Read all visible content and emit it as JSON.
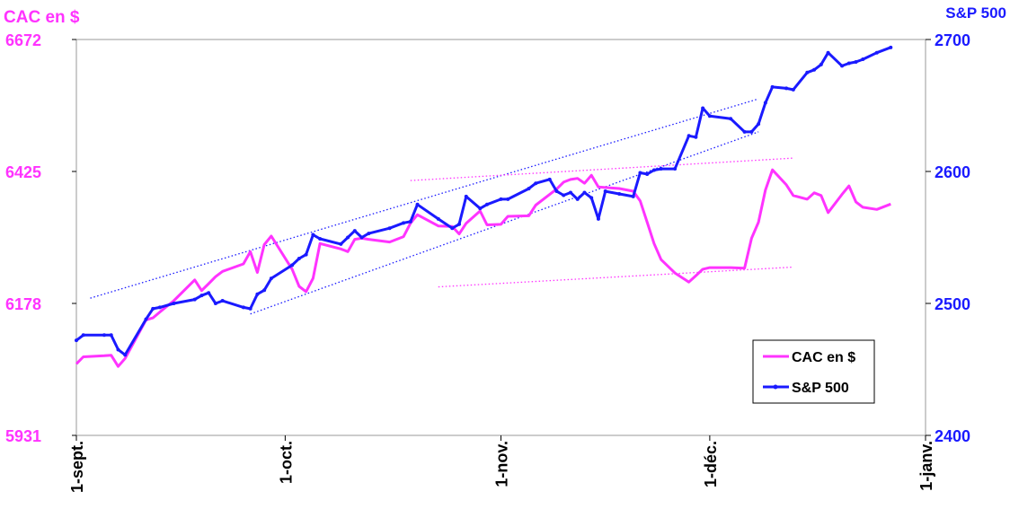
{
  "chart_data": {
    "type": "line",
    "left_axis": {
      "title": "CAC en $",
      "ticks": [
        6672,
        6425,
        6178,
        5931
      ],
      "ylim": [
        5931,
        6672
      ],
      "color": "#ff33ff"
    },
    "right_axis": {
      "title": "S&P 500",
      "ticks": [
        2700,
        2600,
        2500,
        2400
      ],
      "ylim": [
        2400,
        2700
      ],
      "color": "#1a1aff"
    },
    "x_axis": {
      "tick_labels": [
        "1-sept.",
        "1-oct.",
        "1-nov.",
        "1-déc.",
        "1-janv."
      ],
      "ticks": [
        "2017-09-01",
        "2017-10-01",
        "2017-11-01",
        "2017-12-01",
        "2018-01-01"
      ],
      "xlim": [
        "2017-09-01",
        "2018-01-01"
      ]
    },
    "legend": {
      "position": "bottom-right",
      "entries": [
        "CAC en $",
        "S&P 500"
      ]
    },
    "series": [
      {
        "name": "CAC en $",
        "axis": "left",
        "color": "#ff33ff",
        "marker": "none",
        "points": [
          [
            "2017-09-01",
            6065
          ],
          [
            "2017-09-02",
            6078
          ],
          [
            "2017-09-05",
            6080
          ],
          [
            "2017-09-06",
            6081
          ],
          [
            "2017-09-07",
            6060
          ],
          [
            "2017-09-08",
            6075
          ],
          [
            "2017-09-11",
            6147
          ],
          [
            "2017-09-12",
            6151
          ],
          [
            "2017-09-13",
            6162
          ],
          [
            "2017-09-15",
            6183
          ],
          [
            "2017-09-18",
            6222
          ],
          [
            "2017-09-19",
            6202
          ],
          [
            "2017-09-20",
            6215
          ],
          [
            "2017-09-21",
            6228
          ],
          [
            "2017-09-22",
            6238
          ],
          [
            "2017-09-25",
            6252
          ],
          [
            "2017-09-26",
            6275
          ],
          [
            "2017-09-27",
            6236
          ],
          [
            "2017-09-28",
            6288
          ],
          [
            "2017-09-29",
            6304
          ],
          [
            "2017-10-02",
            6242
          ],
          [
            "2017-10-03",
            6210
          ],
          [
            "2017-10-04",
            6200
          ],
          [
            "2017-10-05",
            6225
          ],
          [
            "2017-10-06",
            6290
          ],
          [
            "2017-10-09",
            6280
          ],
          [
            "2017-10-10",
            6275
          ],
          [
            "2017-10-11",
            6298
          ],
          [
            "2017-10-12",
            6300
          ],
          [
            "2017-10-13",
            6298
          ],
          [
            "2017-10-16",
            6293
          ],
          [
            "2017-10-18",
            6303
          ],
          [
            "2017-10-19",
            6328
          ],
          [
            "2017-10-20",
            6344
          ],
          [
            "2017-10-23",
            6323
          ],
          [
            "2017-10-25",
            6322
          ],
          [
            "2017-10-26",
            6308
          ],
          [
            "2017-10-27",
            6328
          ],
          [
            "2017-10-29",
            6351
          ],
          [
            "2017-10-30",
            6325
          ],
          [
            "2017-11-01",
            6326
          ],
          [
            "2017-11-02",
            6341
          ],
          [
            "2017-11-05",
            6342
          ],
          [
            "2017-11-06",
            6362
          ],
          [
            "2017-11-08",
            6382
          ],
          [
            "2017-11-09",
            6392
          ],
          [
            "2017-11-10",
            6405
          ],
          [
            "2017-11-11",
            6410
          ],
          [
            "2017-11-12",
            6412
          ],
          [
            "2017-11-13",
            6403
          ],
          [
            "2017-11-14",
            6418
          ],
          [
            "2017-11-15",
            6396
          ],
          [
            "2017-11-16",
            6395
          ],
          [
            "2017-11-18",
            6393
          ],
          [
            "2017-11-20",
            6388
          ],
          [
            "2017-11-21",
            6370
          ],
          [
            "2017-11-22",
            6330
          ],
          [
            "2017-11-23",
            6290
          ],
          [
            "2017-11-24",
            6260
          ],
          [
            "2017-11-26",
            6235
          ],
          [
            "2017-11-28",
            6218
          ],
          [
            "2017-11-29",
            6230
          ],
          [
            "2017-11-30",
            6242
          ],
          [
            "2017-12-01",
            6245
          ],
          [
            "2017-12-04",
            6245
          ],
          [
            "2017-12-06",
            6244
          ],
          [
            "2017-12-07",
            6300
          ],
          [
            "2017-12-08",
            6330
          ],
          [
            "2017-12-09",
            6390
          ],
          [
            "2017-12-10",
            6428
          ],
          [
            "2017-12-12",
            6400
          ],
          [
            "2017-12-13",
            6380
          ],
          [
            "2017-12-15",
            6373
          ],
          [
            "2017-12-16",
            6385
          ],
          [
            "2017-12-17",
            6380
          ],
          [
            "2017-12-18",
            6348
          ],
          [
            "2017-12-20",
            6382
          ],
          [
            "2017-12-21",
            6398
          ],
          [
            "2017-12-22",
            6368
          ],
          [
            "2017-12-23",
            6358
          ],
          [
            "2017-12-25",
            6354
          ],
          [
            "2017-12-27",
            6364
          ]
        ]
      },
      {
        "name": "S&P 500",
        "axis": "right",
        "color": "#1a1aff",
        "marker": "small dot",
        "points": [
          [
            "2017-09-01",
            2472
          ],
          [
            "2017-09-02",
            2476
          ],
          [
            "2017-09-05",
            2476
          ],
          [
            "2017-09-06",
            2476
          ],
          [
            "2017-09-07",
            2465
          ],
          [
            "2017-09-08",
            2461
          ],
          [
            "2017-09-11",
            2488
          ],
          [
            "2017-09-12",
            2496
          ],
          [
            "2017-09-13",
            2497
          ],
          [
            "2017-09-15",
            2500
          ],
          [
            "2017-09-18",
            2503
          ],
          [
            "2017-09-19",
            2506
          ],
          [
            "2017-09-20",
            2508
          ],
          [
            "2017-09-21",
            2500
          ],
          [
            "2017-09-22",
            2502
          ],
          [
            "2017-09-25",
            2497
          ],
          [
            "2017-09-26",
            2496
          ],
          [
            "2017-09-27",
            2507
          ],
          [
            "2017-09-28",
            2510
          ],
          [
            "2017-09-29",
            2519
          ],
          [
            "2017-10-02",
            2529
          ],
          [
            "2017-10-03",
            2534
          ],
          [
            "2017-10-04",
            2537
          ],
          [
            "2017-10-05",
            2552
          ],
          [
            "2017-10-06",
            2549
          ],
          [
            "2017-10-09",
            2545
          ],
          [
            "2017-10-10",
            2550
          ],
          [
            "2017-10-11",
            2555
          ],
          [
            "2017-10-12",
            2550
          ],
          [
            "2017-10-13",
            2553
          ],
          [
            "2017-10-16",
            2557
          ],
          [
            "2017-10-18",
            2561
          ],
          [
            "2017-10-19",
            2562
          ],
          [
            "2017-10-20",
            2575
          ],
          [
            "2017-10-23",
            2564
          ],
          [
            "2017-10-25",
            2557
          ],
          [
            "2017-10-26",
            2560
          ],
          [
            "2017-10-27",
            2581
          ],
          [
            "2017-10-29",
            2572
          ],
          [
            "2017-10-30",
            2575
          ],
          [
            "2017-11-01",
            2579
          ],
          [
            "2017-11-02",
            2579
          ],
          [
            "2017-11-05",
            2587
          ],
          [
            "2017-11-06",
            2591
          ],
          [
            "2017-11-08",
            2594
          ],
          [
            "2017-11-09",
            2585
          ],
          [
            "2017-11-10",
            2582
          ],
          [
            "2017-11-11",
            2584
          ],
          [
            "2017-11-12",
            2579
          ],
          [
            "2017-11-13",
            2584
          ],
          [
            "2017-11-14",
            2580
          ],
          [
            "2017-11-15",
            2564
          ],
          [
            "2017-11-16",
            2585
          ],
          [
            "2017-11-18",
            2583
          ],
          [
            "2017-11-20",
            2581
          ],
          [
            "2017-11-21",
            2599
          ],
          [
            "2017-11-22",
            2598
          ],
          [
            "2017-11-23",
            2601
          ],
          [
            "2017-11-24",
            2602
          ],
          [
            "2017-11-26",
            2602
          ],
          [
            "2017-11-28",
            2627
          ],
          [
            "2017-11-29",
            2626
          ],
          [
            "2017-11-30",
            2648
          ],
          [
            "2017-12-01",
            2642
          ],
          [
            "2017-12-04",
            2640
          ],
          [
            "2017-12-06",
            2630
          ],
          [
            "2017-12-07",
            2630
          ],
          [
            "2017-12-08",
            2636
          ],
          [
            "2017-12-09",
            2652
          ],
          [
            "2017-12-10",
            2664
          ],
          [
            "2017-12-12",
            2663
          ],
          [
            "2017-12-13",
            2662
          ],
          [
            "2017-12-15",
            2675
          ],
          [
            "2017-12-16",
            2677
          ],
          [
            "2017-12-17",
            2681
          ],
          [
            "2017-12-18",
            2690
          ],
          [
            "2017-12-20",
            2680
          ],
          [
            "2017-12-21",
            2682
          ],
          [
            "2017-12-22",
            2683
          ],
          [
            "2017-12-23",
            2685
          ],
          [
            "2017-12-25",
            2690
          ],
          [
            "2017-12-27",
            2694
          ]
        ]
      }
    ],
    "trend_lines": [
      {
        "axis": "right",
        "color": "#1a1aff",
        "style": "dotted",
        "from": [
          "2017-09-03",
          2504
        ],
        "to": [
          "2017-12-08",
          2655
        ]
      },
      {
        "axis": "right",
        "color": "#1a1aff",
        "style": "dotted",
        "from": [
          "2017-09-26",
          2492
        ],
        "to": [
          "2017-12-08",
          2630
        ]
      },
      {
        "axis": "left",
        "color": "#ff33ff",
        "style": "dotted",
        "from": [
          "2017-10-19",
          6408
        ],
        "to": [
          "2017-12-13",
          6450
        ]
      },
      {
        "axis": "left",
        "color": "#ff33ff",
        "style": "dotted",
        "from": [
          "2017-10-23",
          6209
        ],
        "to": [
          "2017-12-13",
          6246
        ]
      }
    ]
  }
}
